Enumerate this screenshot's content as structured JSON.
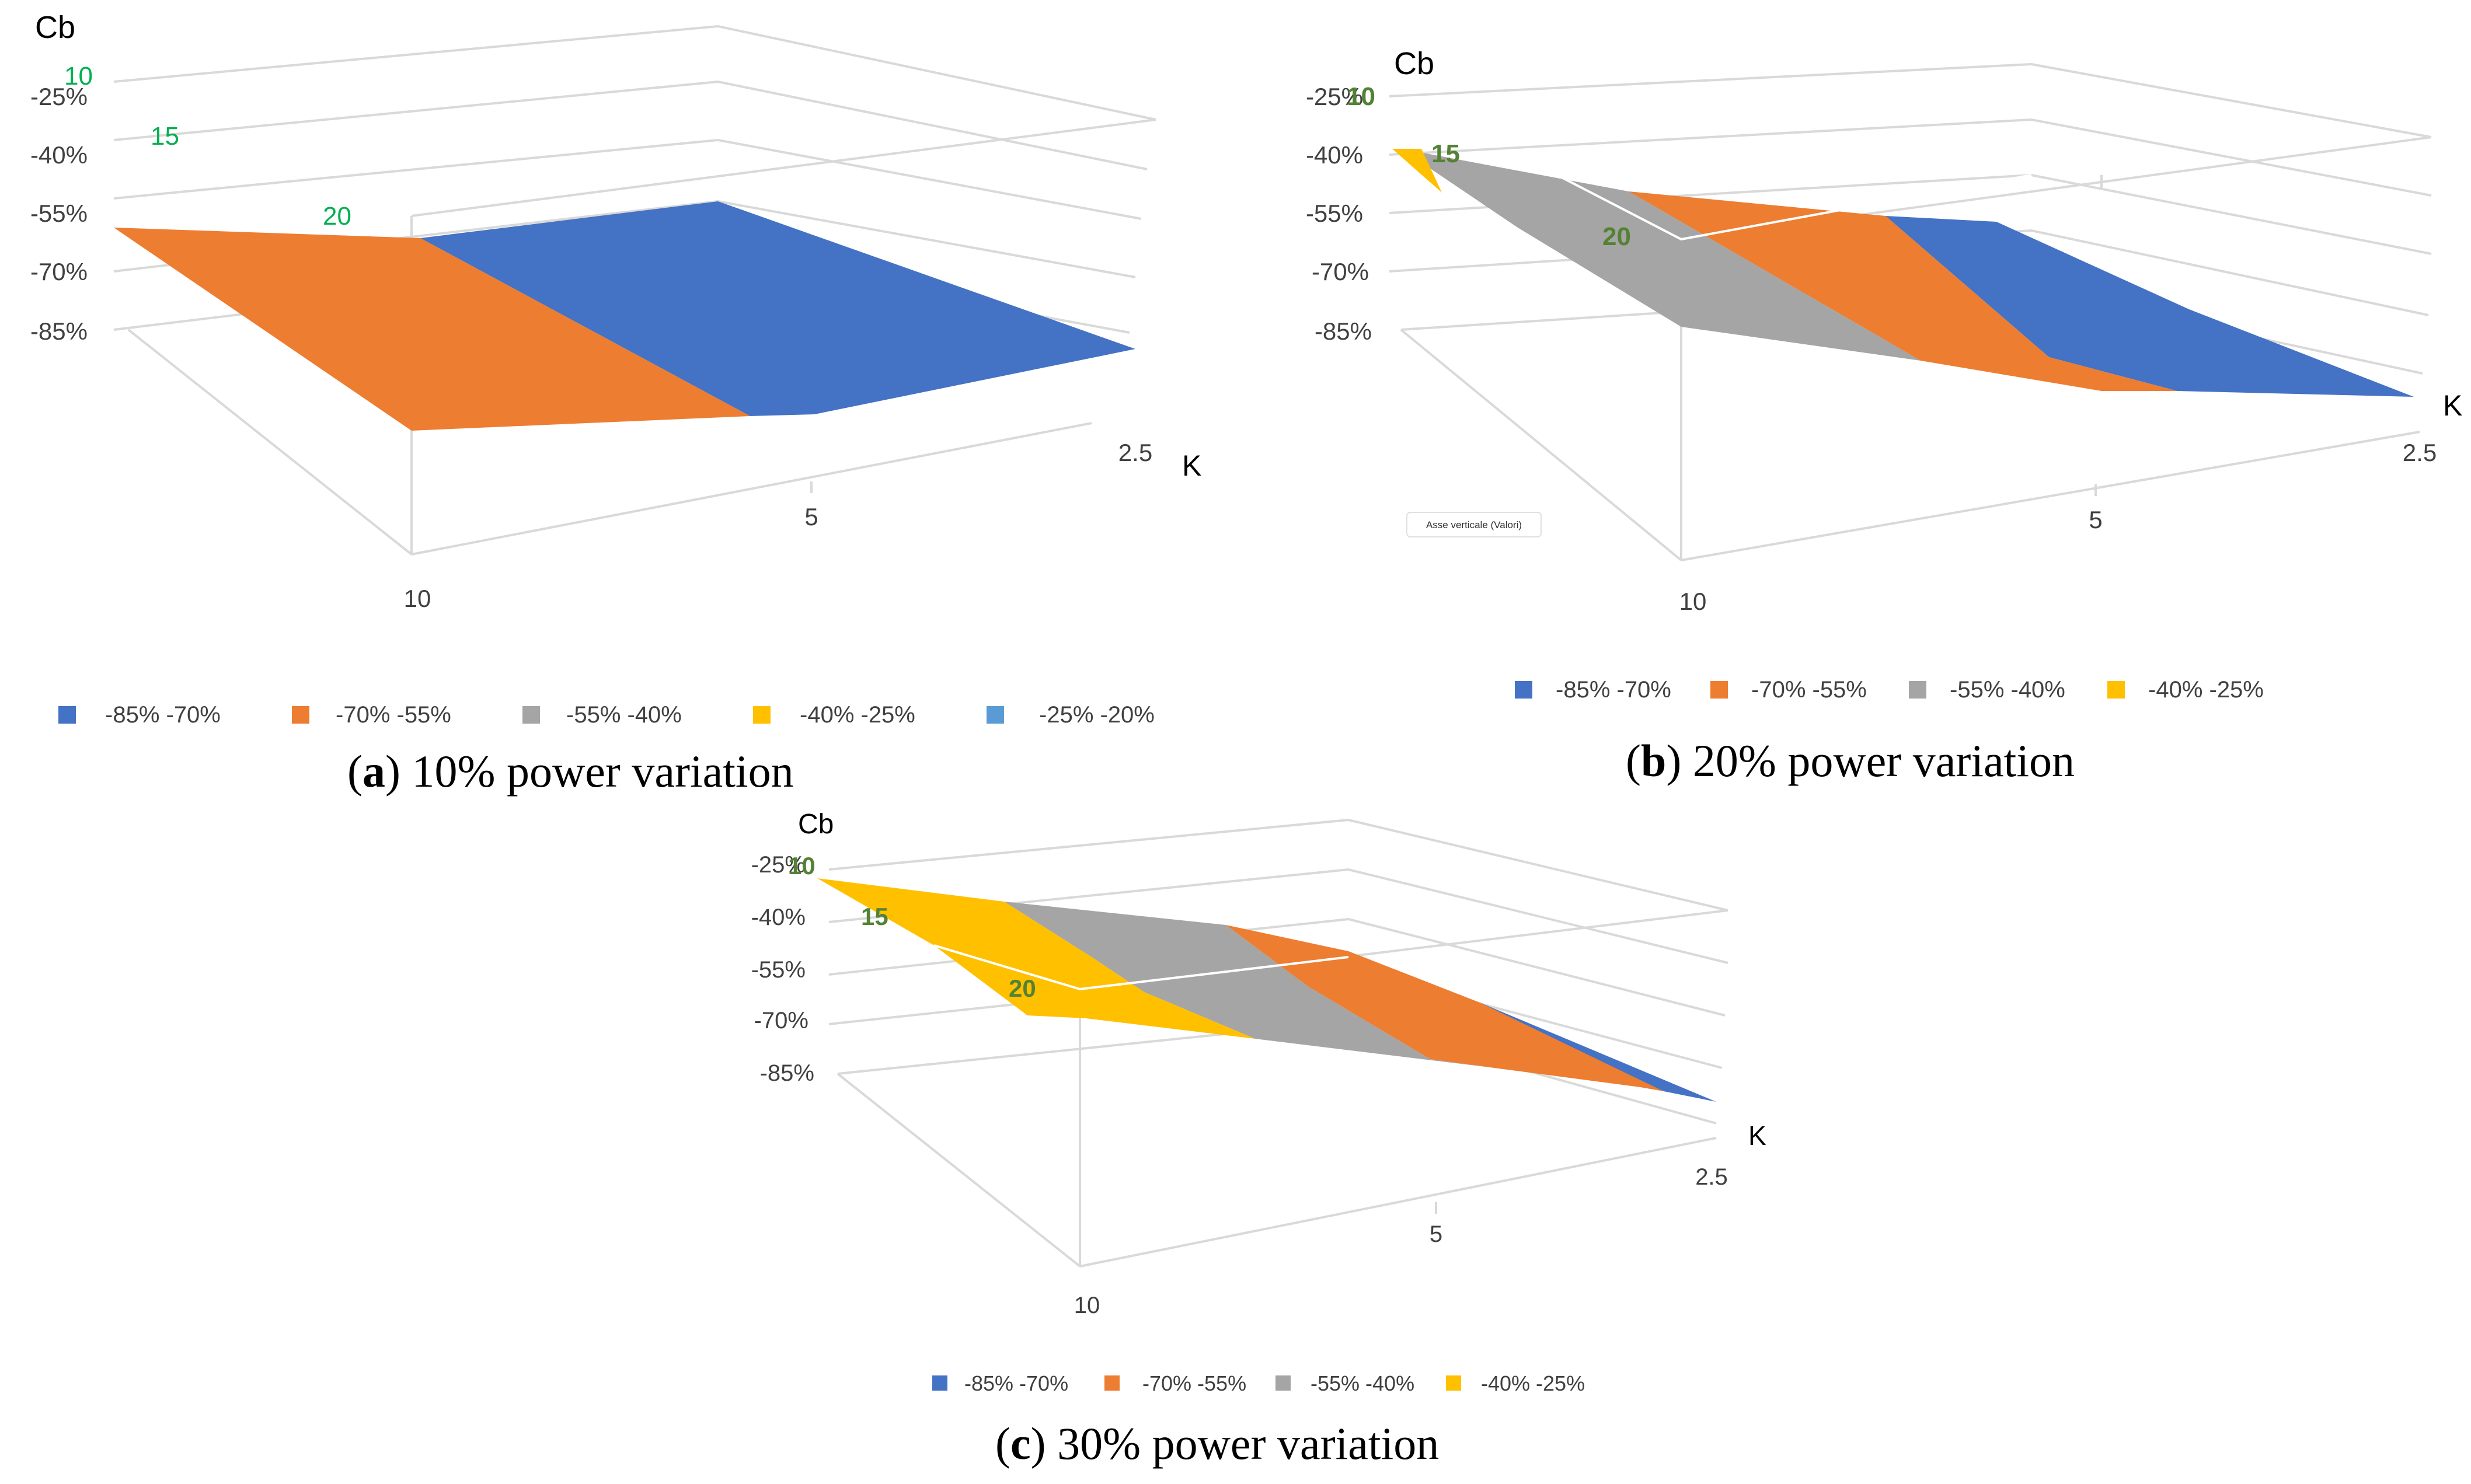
{
  "colors": {
    "blue": "#4472C4",
    "orange": "#ED7D31",
    "gray": "#A5A5A5",
    "yellow": "#FFC000",
    "lightblue": "#5B9BD5",
    "grid": "#d9d9d9",
    "green_a": "#00B050",
    "green_bc": "#548235",
    "text": "#404040"
  },
  "chart_data": [
    {
      "id": "a",
      "type": "surface",
      "title": "",
      "caption_letter": "a",
      "caption_text": "10% power variation",
      "z_axis_title": "Cb",
      "x_axis_title": "K",
      "z_ticks": [
        "-25%",
        "-40%",
        "-55%",
        "-70%",
        "-85%"
      ],
      "y_ticks": [
        "10",
        "15",
        "20"
      ],
      "x_ticks": [
        "10",
        "5",
        "2.5"
      ],
      "legend": [
        {
          "label": "-85% -70%",
          "color": "#4472C4"
        },
        {
          "label": "-70% -55%",
          "color": "#ED7D31"
        },
        {
          "label": "-55% -40%",
          "color": "#A5A5A5"
        },
        {
          "label": "-40% -25%",
          "color": "#FFC000"
        },
        {
          "label": "-25% -20%",
          "color": "#5B9BD5"
        }
      ]
    },
    {
      "id": "b",
      "type": "surface",
      "title": "",
      "caption_letter": "b",
      "caption_text": "20% power variation",
      "z_axis_title": "Cb",
      "x_axis_title": "K",
      "z_ticks": [
        "-25%",
        "-40%",
        "-55%",
        "-70%",
        "-85%"
      ],
      "y_ticks": [
        "10",
        "15",
        "20"
      ],
      "x_ticks": [
        "10",
        "5",
        "2.5"
      ],
      "tooltip": "Asse verticale (Valori)",
      "legend": [
        {
          "label": "-85% -70%",
          "color": "#4472C4"
        },
        {
          "label": "-70% -55%",
          "color": "#ED7D31"
        },
        {
          "label": "-55% -40%",
          "color": "#A5A5A5"
        },
        {
          "label": "-40% -25%",
          "color": "#FFC000"
        }
      ]
    },
    {
      "id": "c",
      "type": "surface",
      "title": "",
      "caption_letter": "c",
      "caption_text": "30% power variation",
      "z_axis_title": "Cb",
      "x_axis_title": "K",
      "z_ticks": [
        "-25%",
        "-40%",
        "-55%",
        "-70%",
        "-85%"
      ],
      "y_ticks": [
        "10",
        "15",
        "20"
      ],
      "x_ticks": [
        "10",
        "5",
        "2.5"
      ],
      "legend": [
        {
          "label": "-85% -70%",
          "color": "#4472C4"
        },
        {
          "label": "-70% -55%",
          "color": "#ED7D31"
        },
        {
          "label": "-55% -40%",
          "color": "#A5A5A5"
        },
        {
          "label": "-40% -25%",
          "color": "#FFC000"
        }
      ]
    }
  ]
}
